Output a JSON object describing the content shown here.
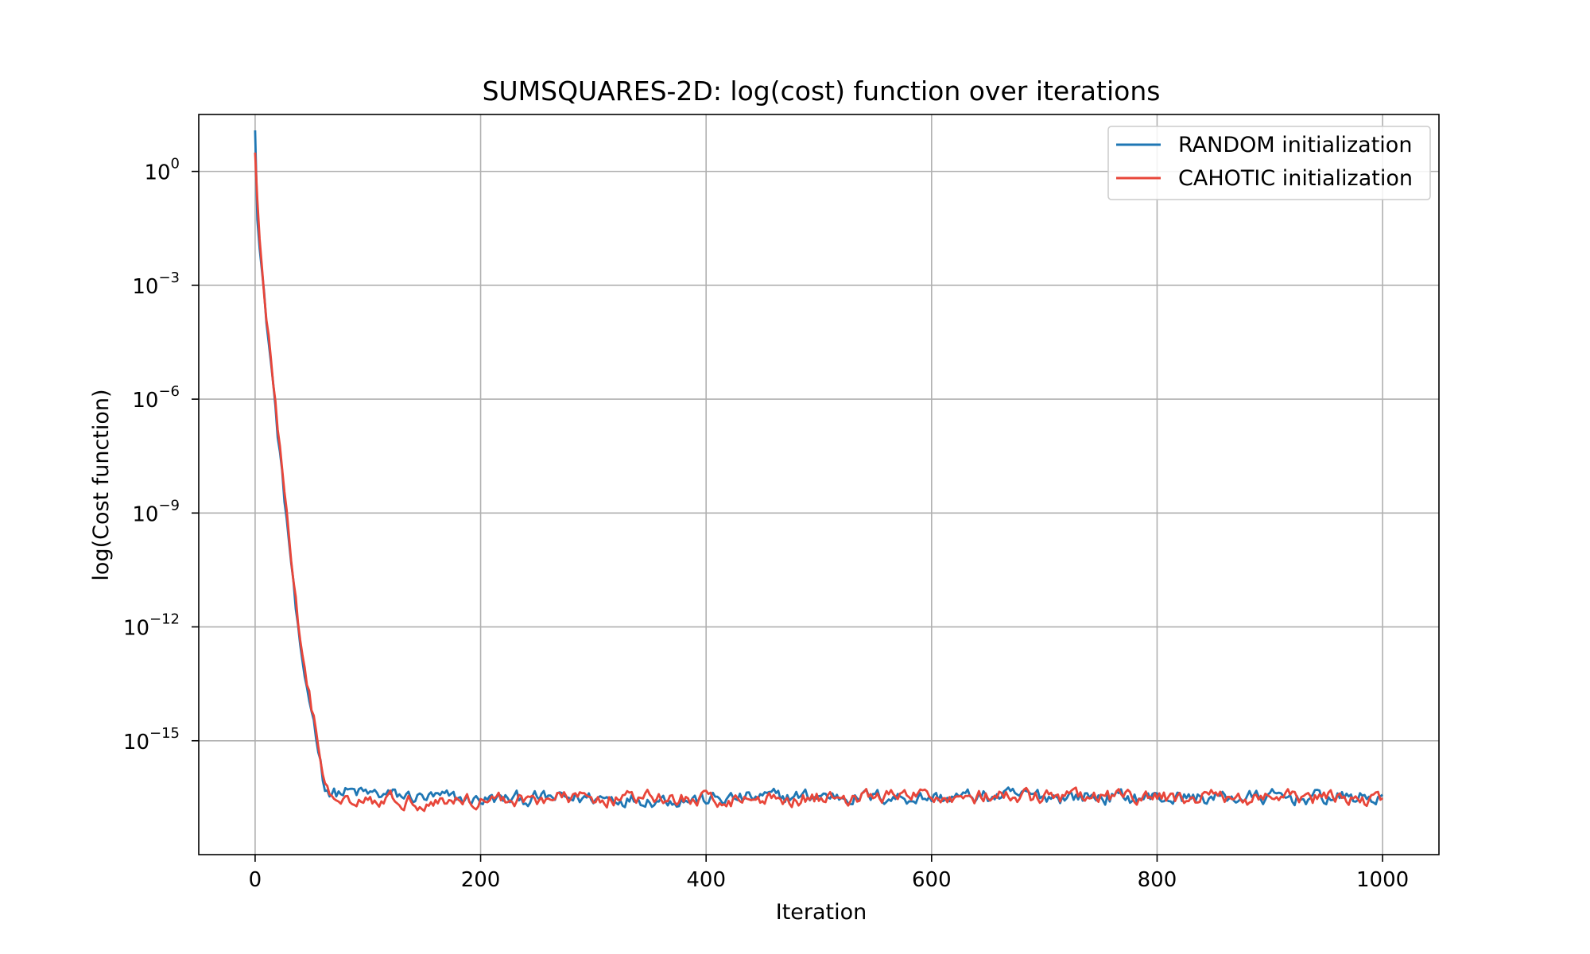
{
  "chart_data": {
    "type": "line",
    "title": "SUMSQUARES-2D: log(cost) function over iterations",
    "xlabel": "Iteration",
    "ylabel": "log(Cost function)",
    "yscale": "log",
    "xlim": [
      -50,
      1050
    ],
    "ylim_log10": [
      -18.0,
      1.5
    ],
    "xticks": [
      0,
      200,
      400,
      600,
      800,
      1000
    ],
    "xtick_labels": [
      "0",
      "200",
      "400",
      "600",
      "800",
      "1000"
    ],
    "yticks_log10": [
      0,
      -3,
      -6,
      -9,
      -12,
      -15
    ],
    "ytick_labels": [
      {
        "base": "10",
        "exp": "0"
      },
      {
        "base": "10",
        "exp": "−3"
      },
      {
        "base": "10",
        "exp": "−6"
      },
      {
        "base": "10",
        "exp": "−9"
      },
      {
        "base": "10",
        "exp": "−12"
      },
      {
        "base": "10",
        "exp": "−15"
      }
    ],
    "grid": true,
    "legend_position": "top-right",
    "series": [
      {
        "name": "RANDOM initialization",
        "color": "#1f77b4",
        "x": [
          0,
          1,
          3,
          5,
          8,
          12,
          16,
          20,
          24,
          28,
          32,
          36,
          40,
          44,
          48,
          52,
          56,
          60,
          62,
          64,
          66,
          70,
          80,
          100,
          150,
          200,
          300,
          400,
          500,
          600,
          700,
          800,
          900,
          1000
        ],
        "y_log10": [
          1.2,
          -0.5,
          -1.8,
          -2.3,
          -3.3,
          -4.5,
          -5.6,
          -6.9,
          -8.0,
          -9.2,
          -10.3,
          -11.5,
          -12.6,
          -13.3,
          -13.9,
          -14.5,
          -15.2,
          -16.0,
          -16.2,
          -16.3,
          -16.4,
          -16.4,
          -16.35,
          -16.4,
          -16.5,
          -16.55,
          -16.5,
          -16.55,
          -16.45,
          -16.5,
          -16.45,
          -16.5,
          -16.5,
          -16.5
        ]
      },
      {
        "name": "CAHOTIC initialization",
        "color": "#e8463a",
        "x": [
          0,
          1,
          3,
          5,
          8,
          12,
          16,
          20,
          24,
          28,
          32,
          36,
          40,
          44,
          48,
          52,
          56,
          60,
          62,
          64,
          66,
          70,
          80,
          100,
          150,
          200,
          300,
          400,
          500,
          600,
          700,
          800,
          900,
          1000
        ],
        "y_log10": [
          0.6,
          0.1,
          -1.5,
          -2.2,
          -3.3,
          -4.4,
          -5.5,
          -6.7,
          -7.9,
          -9.0,
          -10.2,
          -11.3,
          -12.4,
          -13.2,
          -13.8,
          -14.4,
          -15.1,
          -15.9,
          -16.1,
          -16.3,
          -16.35,
          -16.4,
          -16.45,
          -16.5,
          -16.6,
          -16.55,
          -16.5,
          -16.55,
          -16.5,
          -16.45,
          -16.5,
          -16.5,
          -16.5,
          -16.55
        ]
      }
    ]
  }
}
